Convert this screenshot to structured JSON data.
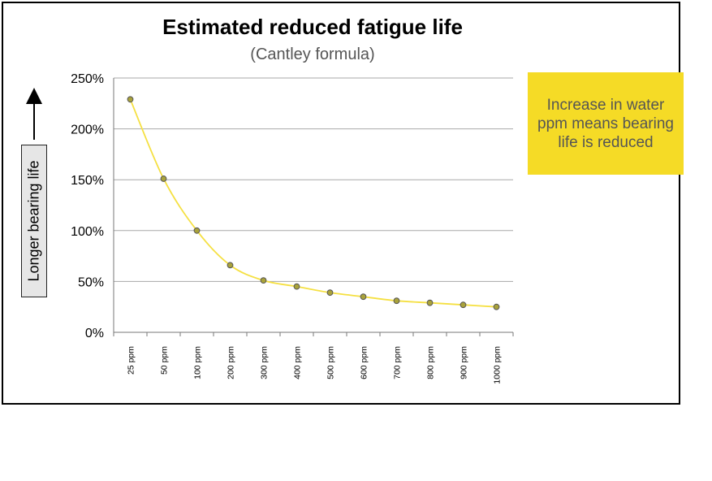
{
  "chart_data": {
    "type": "line",
    "title": "Estimated reduced fatigue life",
    "subtitle": "(Cantley formula)",
    "ylabel": "Longer bearing life",
    "ylim": [
      0,
      250
    ],
    "yticks": [
      "0%",
      "50%",
      "100%",
      "150%",
      "200%",
      "250%"
    ],
    "grid": true,
    "categories": [
      "25 ppm",
      "50 ppm",
      "100 ppm",
      "200 ppm",
      "300 ppm",
      "400 ppm",
      "500 ppm",
      "600 ppm",
      "700 ppm",
      "800 ppm",
      "900 ppm",
      "1000 ppm"
    ],
    "values": [
      229,
      151,
      100,
      66,
      51,
      45,
      39,
      35,
      31,
      29,
      27,
      25
    ],
    "line_color": "#f5e042",
    "marker_fill": "#a9a23a",
    "annotation": "Increase in water ppm means bearing life is reduced",
    "annotation_color": "#f5db26"
  }
}
